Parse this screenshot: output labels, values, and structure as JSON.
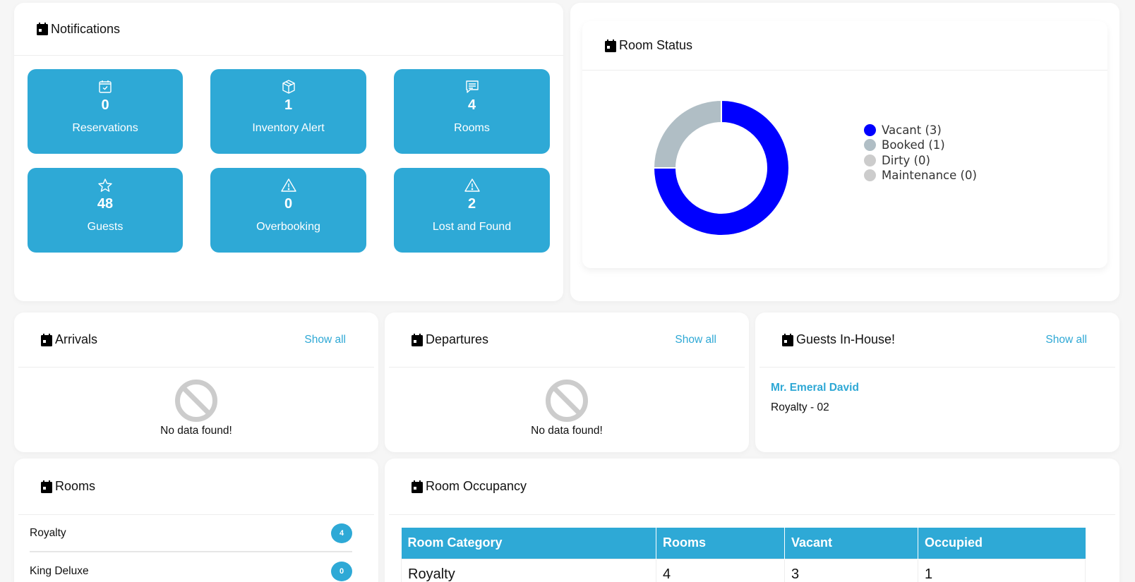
{
  "colors": {
    "accent": "#2ea9d6",
    "link": "#2ea8d5",
    "vacant": "#0000ff",
    "booked": "#b0bec5",
    "dirty": "#cccccc",
    "maintenance": "#cccccc"
  },
  "notifications": {
    "title": "Notifications",
    "tiles": [
      {
        "icon": "calendar-check-icon",
        "count": "0",
        "label": "Reservations"
      },
      {
        "icon": "box-icon",
        "count": "1",
        "label": "Inventory Alert"
      },
      {
        "icon": "message-icon",
        "count": "4",
        "label": "Rooms"
      },
      {
        "icon": "star-icon",
        "count": "48",
        "label": "Guests"
      },
      {
        "icon": "warning-icon",
        "count": "0",
        "label": "Overbooking"
      },
      {
        "icon": "warning-icon",
        "count": "2",
        "label": "Lost and Found"
      }
    ]
  },
  "room_status": {
    "title": "Room Status",
    "legend": [
      {
        "label": "Vacant (3)",
        "color": "#0000ff"
      },
      {
        "label": "Booked (1)",
        "color": "#b0bec5"
      },
      {
        "label": "Dirty (0)",
        "color": "#cccccc"
      },
      {
        "label": "Maintenance (0)",
        "color": "#cccccc"
      }
    ]
  },
  "chart_data": {
    "type": "pie",
    "variant": "donut",
    "title": "Room Status",
    "categories": [
      "Vacant",
      "Booked",
      "Dirty",
      "Maintenance"
    ],
    "values": [
      3,
      1,
      0,
      0
    ],
    "colors": [
      "#0000ff",
      "#b0bec5",
      "#cccccc",
      "#cccccc"
    ],
    "legend_position": "right"
  },
  "arrivals": {
    "title": "Arrivals",
    "show_all": "Show all",
    "empty": "No data found!"
  },
  "departures": {
    "title": "Departures",
    "show_all": "Show all",
    "empty": "No data found!"
  },
  "in_house": {
    "title": "Guests In-House!",
    "show_all": "Show all",
    "guests": [
      {
        "name": "Mr. Emeral David",
        "room": "Royalty - 02"
      }
    ]
  },
  "rooms": {
    "title": "Rooms",
    "items": [
      {
        "name": "Royalty",
        "count": "4"
      },
      {
        "name": "King Deluxe",
        "count": "0"
      }
    ]
  },
  "occupancy": {
    "title": "Room Occupancy",
    "columns": [
      "Room Category",
      "Rooms",
      "Vacant",
      "Occupied"
    ],
    "rows": [
      [
        "Royalty",
        "4",
        "3",
        "1"
      ]
    ]
  }
}
